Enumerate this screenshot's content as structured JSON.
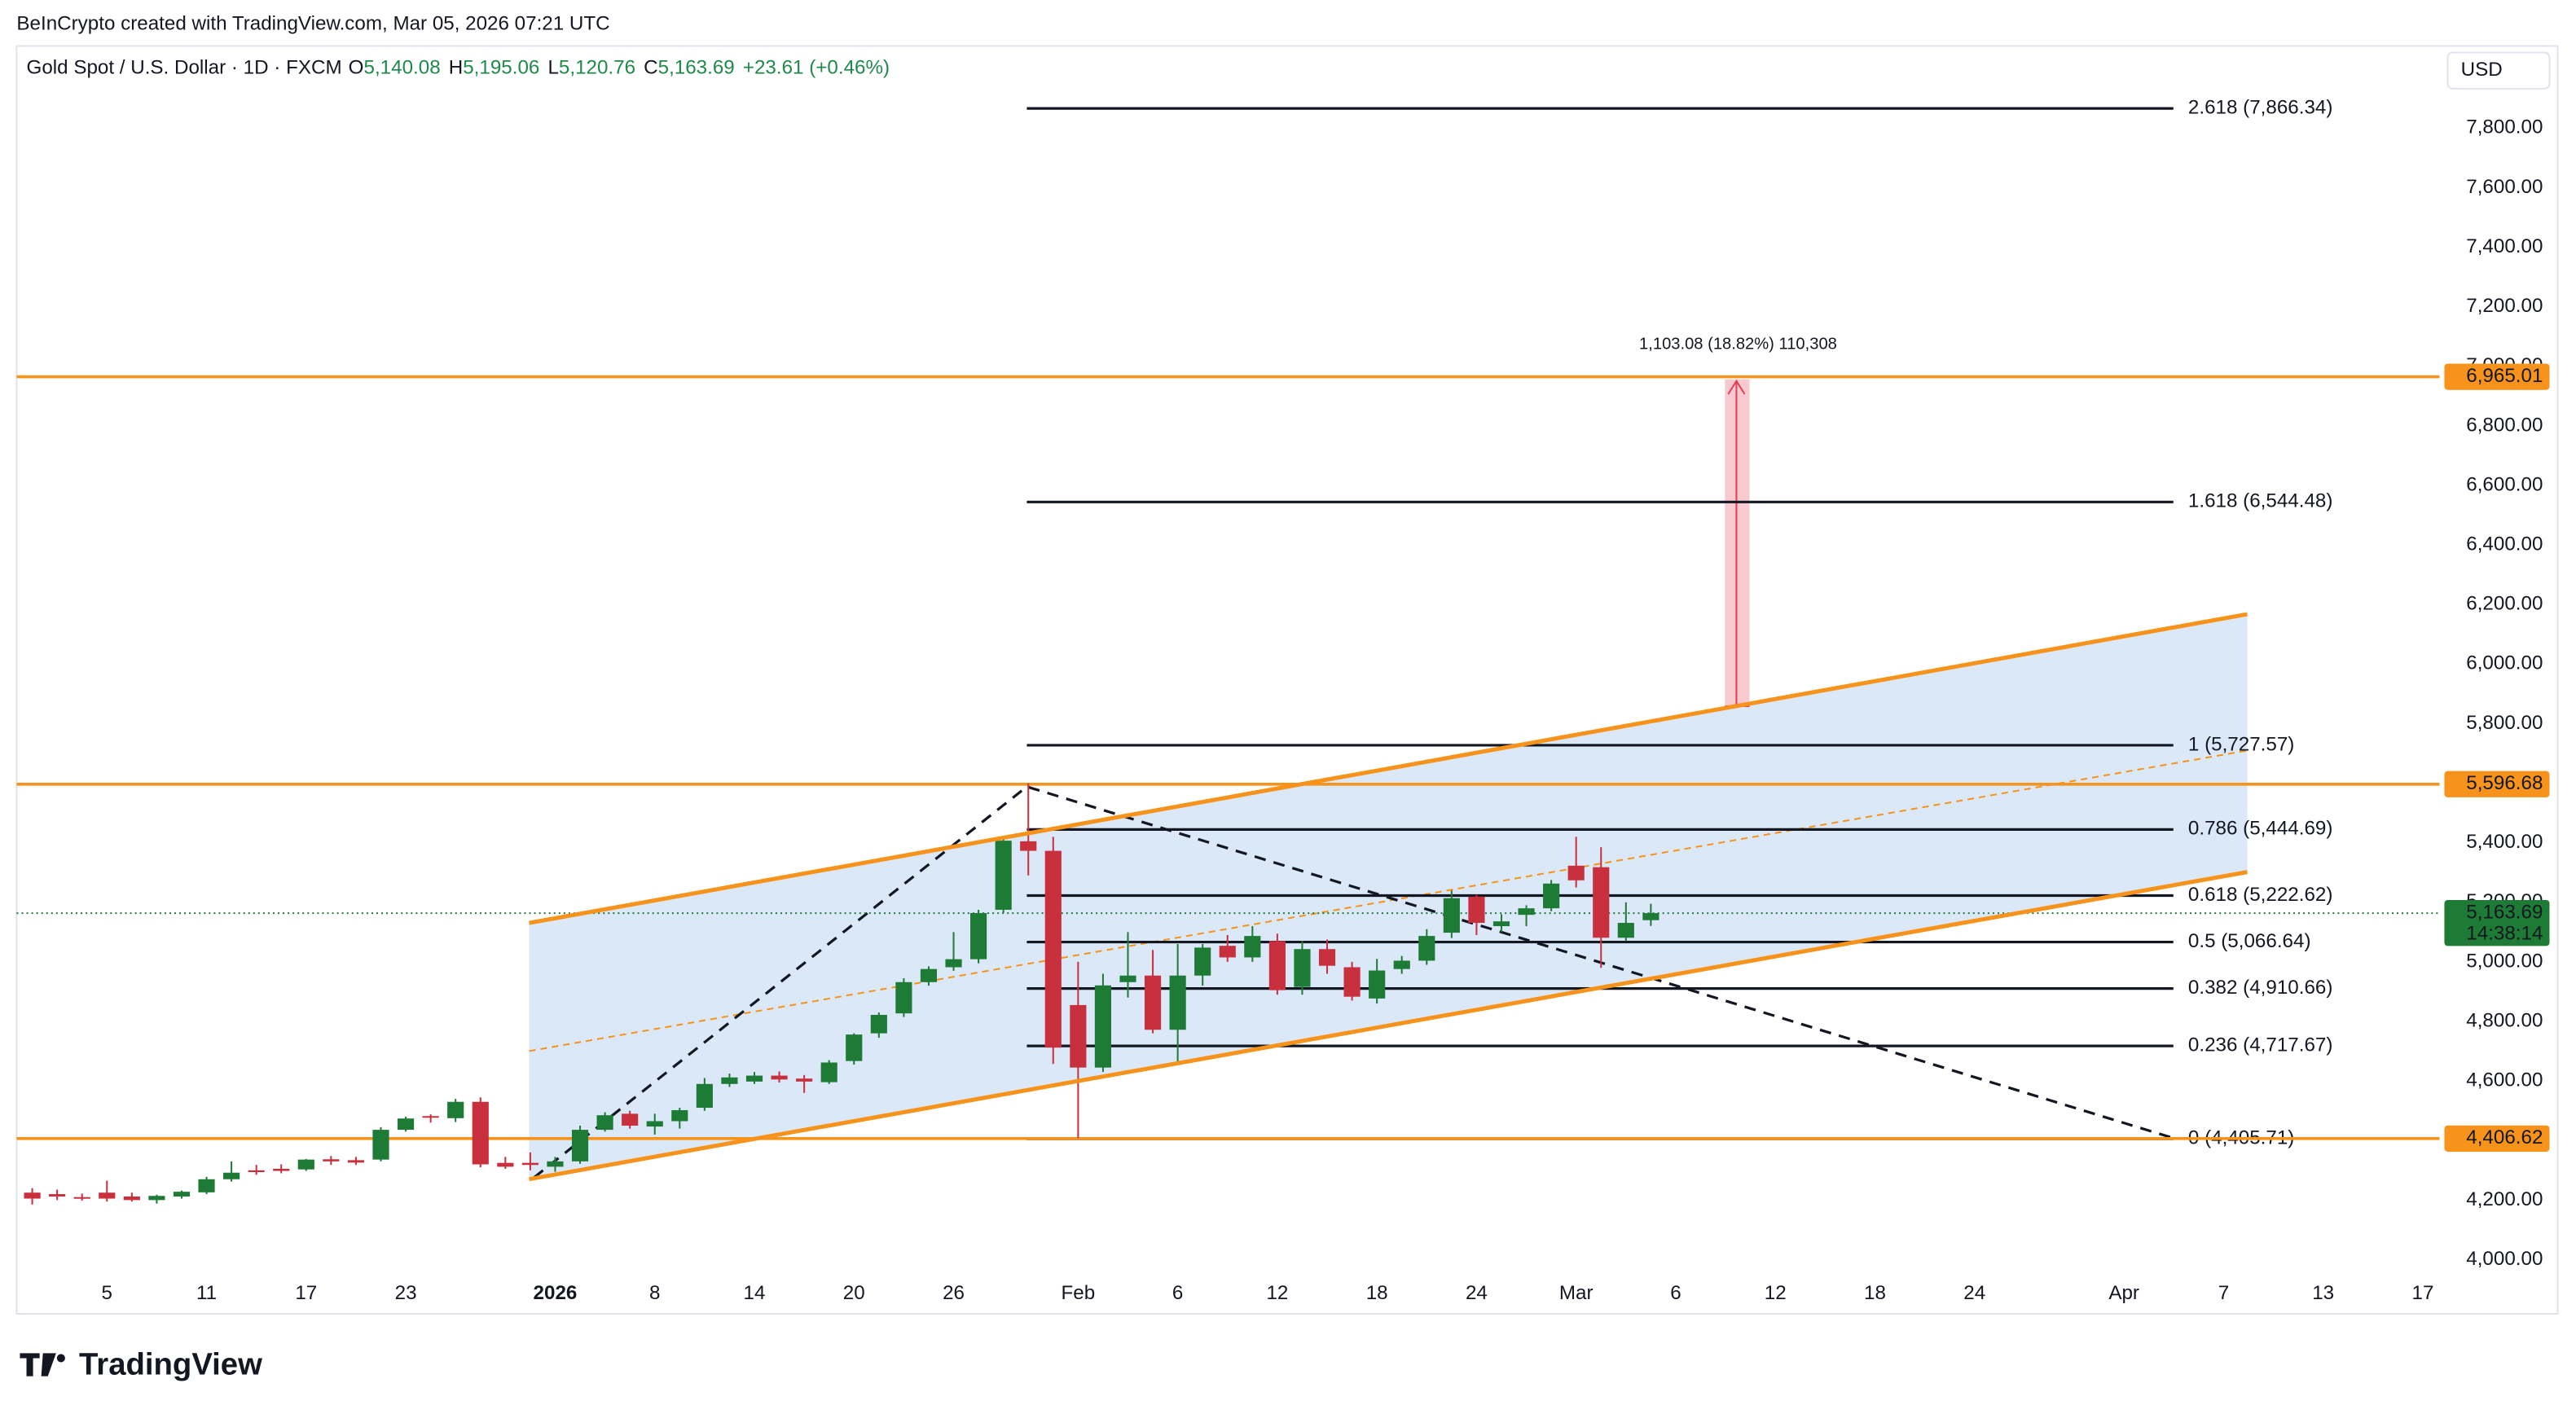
{
  "page": {
    "attribution": "BeInCrypto created with TradingView.com, Mar 05, 2026 07:21 UTC",
    "logo": "TradingView"
  },
  "chart_data": {
    "type": "candlestick",
    "title": "Gold Spot / U.S. Dollar · 1D · FXCM",
    "ohlc_legend": [
      {
        "key": "O",
        "value": "5,140.08"
      },
      {
        "key": "H",
        "value": "5,195.06"
      },
      {
        "key": "L",
        "value": "5,120.76"
      },
      {
        "key": "C",
        "value": "5,163.69"
      }
    ],
    "change": "+23.61 (+0.46%)",
    "currency": "USD",
    "last_price_label": "5,163.69",
    "countdown": "14:38:14",
    "measure_label": "1,103.08 (18.82%) 110,308",
    "up_color": "#1e7b36",
    "down_color": "#c8303e",
    "categories": [
      null,
      null,
      null,
      "5",
      null,
      null,
      null,
      "11",
      null,
      null,
      null,
      "17",
      null,
      null,
      null,
      "23",
      null,
      null,
      null,
      null,
      null,
      "2026",
      null,
      null,
      null,
      "8",
      null,
      null,
      null,
      "14",
      null,
      null,
      null,
      "20",
      null,
      null,
      null,
      "26",
      null,
      null,
      null,
      null,
      "Feb",
      null,
      null,
      null,
      "6",
      null,
      null,
      null,
      "12",
      null,
      null,
      null,
      "18",
      null,
      null,
      null,
      "24",
      null,
      null,
      null,
      "Mar",
      null,
      null,
      null,
      "6",
      null,
      null,
      null,
      "12",
      null,
      null,
      null,
      "18",
      null,
      null,
      null,
      "24",
      null,
      null,
      null,
      null,
      null,
      "Apr",
      null,
      null,
      null,
      "7",
      null,
      null,
      null,
      "13",
      null,
      null,
      null,
      "17",
      null
    ],
    "open": [
      4225,
      4220,
      4210,
      4225,
      4212,
      4200,
      4212,
      4226,
      4270,
      4300,
      4305,
      4303,
      4337,
      4334,
      4336,
      4436,
      4482,
      4475,
      4530,
      4325,
      4325,
      4312,
      4330,
      4436,
      4490,
      4447,
      4465,
      4510,
      4590,
      4598,
      4618,
      4608,
      4596,
      4667,
      4760,
      4827,
      4932,
      4982,
      5009,
      5175,
      5405,
      5373,
      4855,
      4645,
      4932,
      4954,
      4772,
      4954,
      5054,
      5015,
      5070,
      4916,
      5043,
      4982,
      4877,
      4976,
      5004,
      5098,
      5219,
      5120,
      5158,
      5180,
      5323,
      5318,
      5081,
      5140.08,
      null,
      null,
      null,
      null,
      null,
      null,
      null,
      null,
      null,
      null,
      null,
      null,
      null,
      null,
      null,
      null,
      null,
      null,
      null,
      null,
      null,
      null,
      null,
      null,
      null,
      null,
      null,
      null,
      null,
      null,
      null,
      null
    ],
    "high": [
      4240,
      4235,
      4222,
      4265,
      4225,
      4218,
      4232,
      4278,
      4330,
      4318,
      4320,
      4338,
      4348,
      4345,
      4445,
      4480,
      4488,
      4540,
      4545,
      4345,
      4360,
      4345,
      4450,
      4495,
      4500,
      4490,
      4510,
      4610,
      4625,
      4630,
      4632,
      4620,
      4670,
      4760,
      4830,
      4945,
      4985,
      5100,
      5175,
      5415,
      5600,
      5420,
      5000,
      4960,
      5100,
      5040,
      5060,
      5060,
      5090,
      5120,
      5095,
      5070,
      5075,
      5000,
      5010,
      5020,
      5110,
      5240,
      5225,
      5160,
      5190,
      5275,
      5420,
      5385,
      5200,
      5195.06,
      null,
      null,
      null,
      null,
      null,
      null,
      null,
      null,
      null,
      null,
      null,
      null,
      null,
      null,
      null,
      null,
      null,
      null,
      null,
      null,
      null,
      null,
      null,
      null,
      null,
      null,
      null,
      null,
      null,
      null,
      null,
      null
    ],
    "low": [
      4185,
      4200,
      4198,
      4195,
      4195,
      4188,
      4205,
      4220,
      4262,
      4285,
      4290,
      4298,
      4318,
      4318,
      4330,
      4430,
      4460,
      4462,
      4310,
      4305,
      4300,
      4295,
      4322,
      4430,
      4440,
      4420,
      4440,
      4500,
      4580,
      4590,
      4595,
      4560,
      4590,
      4655,
      4745,
      4815,
      4920,
      4970,
      4995,
      5165,
      5290,
      4657,
      4408,
      4630,
      4880,
      4760,
      4656,
      4920,
      5000,
      5000,
      4890,
      4890,
      4960,
      4870,
      4860,
      4960,
      4990,
      5080,
      5090,
      5100,
      5120,
      5170,
      5250,
      4980,
      5070,
      5120.76,
      null,
      null,
      null,
      null,
      null,
      null,
      null,
      null,
      null,
      null,
      null,
      null,
      null,
      null,
      null,
      null,
      null,
      null,
      null,
      null,
      null,
      null,
      null,
      null,
      null,
      null,
      null,
      null,
      null,
      null,
      null,
      null
    ],
    "close": [
      4205,
      4212,
      4208,
      4205,
      4200,
      4214,
      4228,
      4270,
      4292,
      4294,
      4298,
      4336,
      4330,
      4326,
      4436,
      4474,
      4478,
      4530,
      4320,
      4312,
      4318,
      4330,
      4436,
      4485,
      4450,
      4465,
      4502,
      4590,
      4612,
      4618,
      4605,
      4598,
      4662,
      4756,
      4822,
      4932,
      4976,
      5009,
      5164,
      5407,
      5373,
      4712,
      4645,
      4921,
      4954,
      4772,
      4954,
      5048,
      5015,
      5087,
      4905,
      5043,
      4987,
      4883,
      4971,
      5004,
      5087,
      5214,
      5131,
      5136,
      5180,
      5263,
      5274,
      5081,
      5131,
      5163.69,
      null,
      null,
      null,
      null,
      null,
      null,
      null,
      null,
      null,
      null,
      null,
      null,
      null,
      null,
      null,
      null,
      null,
      null,
      null,
      null,
      null,
      null,
      null,
      null,
      null,
      null,
      null,
      null,
      null,
      null,
      null,
      null
    ],
    "ylim": [
      3818,
      8076
    ],
    "yticks": [
      {
        "value": 4000,
        "label": "4,000.00"
      },
      {
        "value": 4200,
        "label": "4,200.00"
      },
      {
        "value": 4400,
        "label": "4,400.00"
      },
      {
        "value": 4600,
        "label": "4,600.00"
      },
      {
        "value": 4800,
        "label": "4,800.00"
      },
      {
        "value": 5000,
        "label": "5,000.00"
      },
      {
        "value": 5200,
        "label": "5,200.00"
      },
      {
        "value": 5400,
        "label": "5,400.00"
      },
      {
        "value": 5600,
        "label": "5,600.00"
      },
      {
        "value": 5800,
        "label": "5,800.00"
      },
      {
        "value": 6000,
        "label": "6,000.00"
      },
      {
        "value": 6200,
        "label": "6,200.00"
      },
      {
        "value": 6400,
        "label": "6,400.00"
      },
      {
        "value": 6600,
        "label": "6,600.00"
      },
      {
        "value": 6800,
        "label": "6,800.00"
      },
      {
        "value": 7000,
        "label": "7,000.00"
      },
      {
        "value": 7200,
        "label": "7,200.00"
      },
      {
        "value": 7400,
        "label": "7,400.00"
      },
      {
        "value": 7600,
        "label": "7,600.00"
      },
      {
        "value": 7800,
        "label": "7,800.00"
      }
    ],
    "price_lines": [
      {
        "value": 6965.01,
        "label": "6,965.01"
      },
      {
        "value": 5596.68,
        "label": "5,596.68"
      },
      {
        "value": 4406.62,
        "label": "4,406.62"
      }
    ],
    "price_line_color": "#f7931a",
    "fib_levels": [
      {
        "value": 7866.34,
        "label": "2.618 (7,866.34)"
      },
      {
        "value": 6544.48,
        "label": "1.618 (6,544.48)"
      },
      {
        "value": 5727.57,
        "label": "1 (5,727.57)"
      },
      {
        "value": 5444.69,
        "label": "0.786 (5,444.69)"
      },
      {
        "value": 5222.62,
        "label": "0.618 (5,222.62)"
      },
      {
        "value": 5066.64,
        "label": "0.5 (5,066.64)"
      },
      {
        "value": 4910.66,
        "label": "0.382 (4,910.66)"
      },
      {
        "value": 4717.67,
        "label": "0.236 (4,717.67)"
      },
      {
        "value": 4405.71,
        "label": "0 (4,405.71)"
      }
    ]
  }
}
